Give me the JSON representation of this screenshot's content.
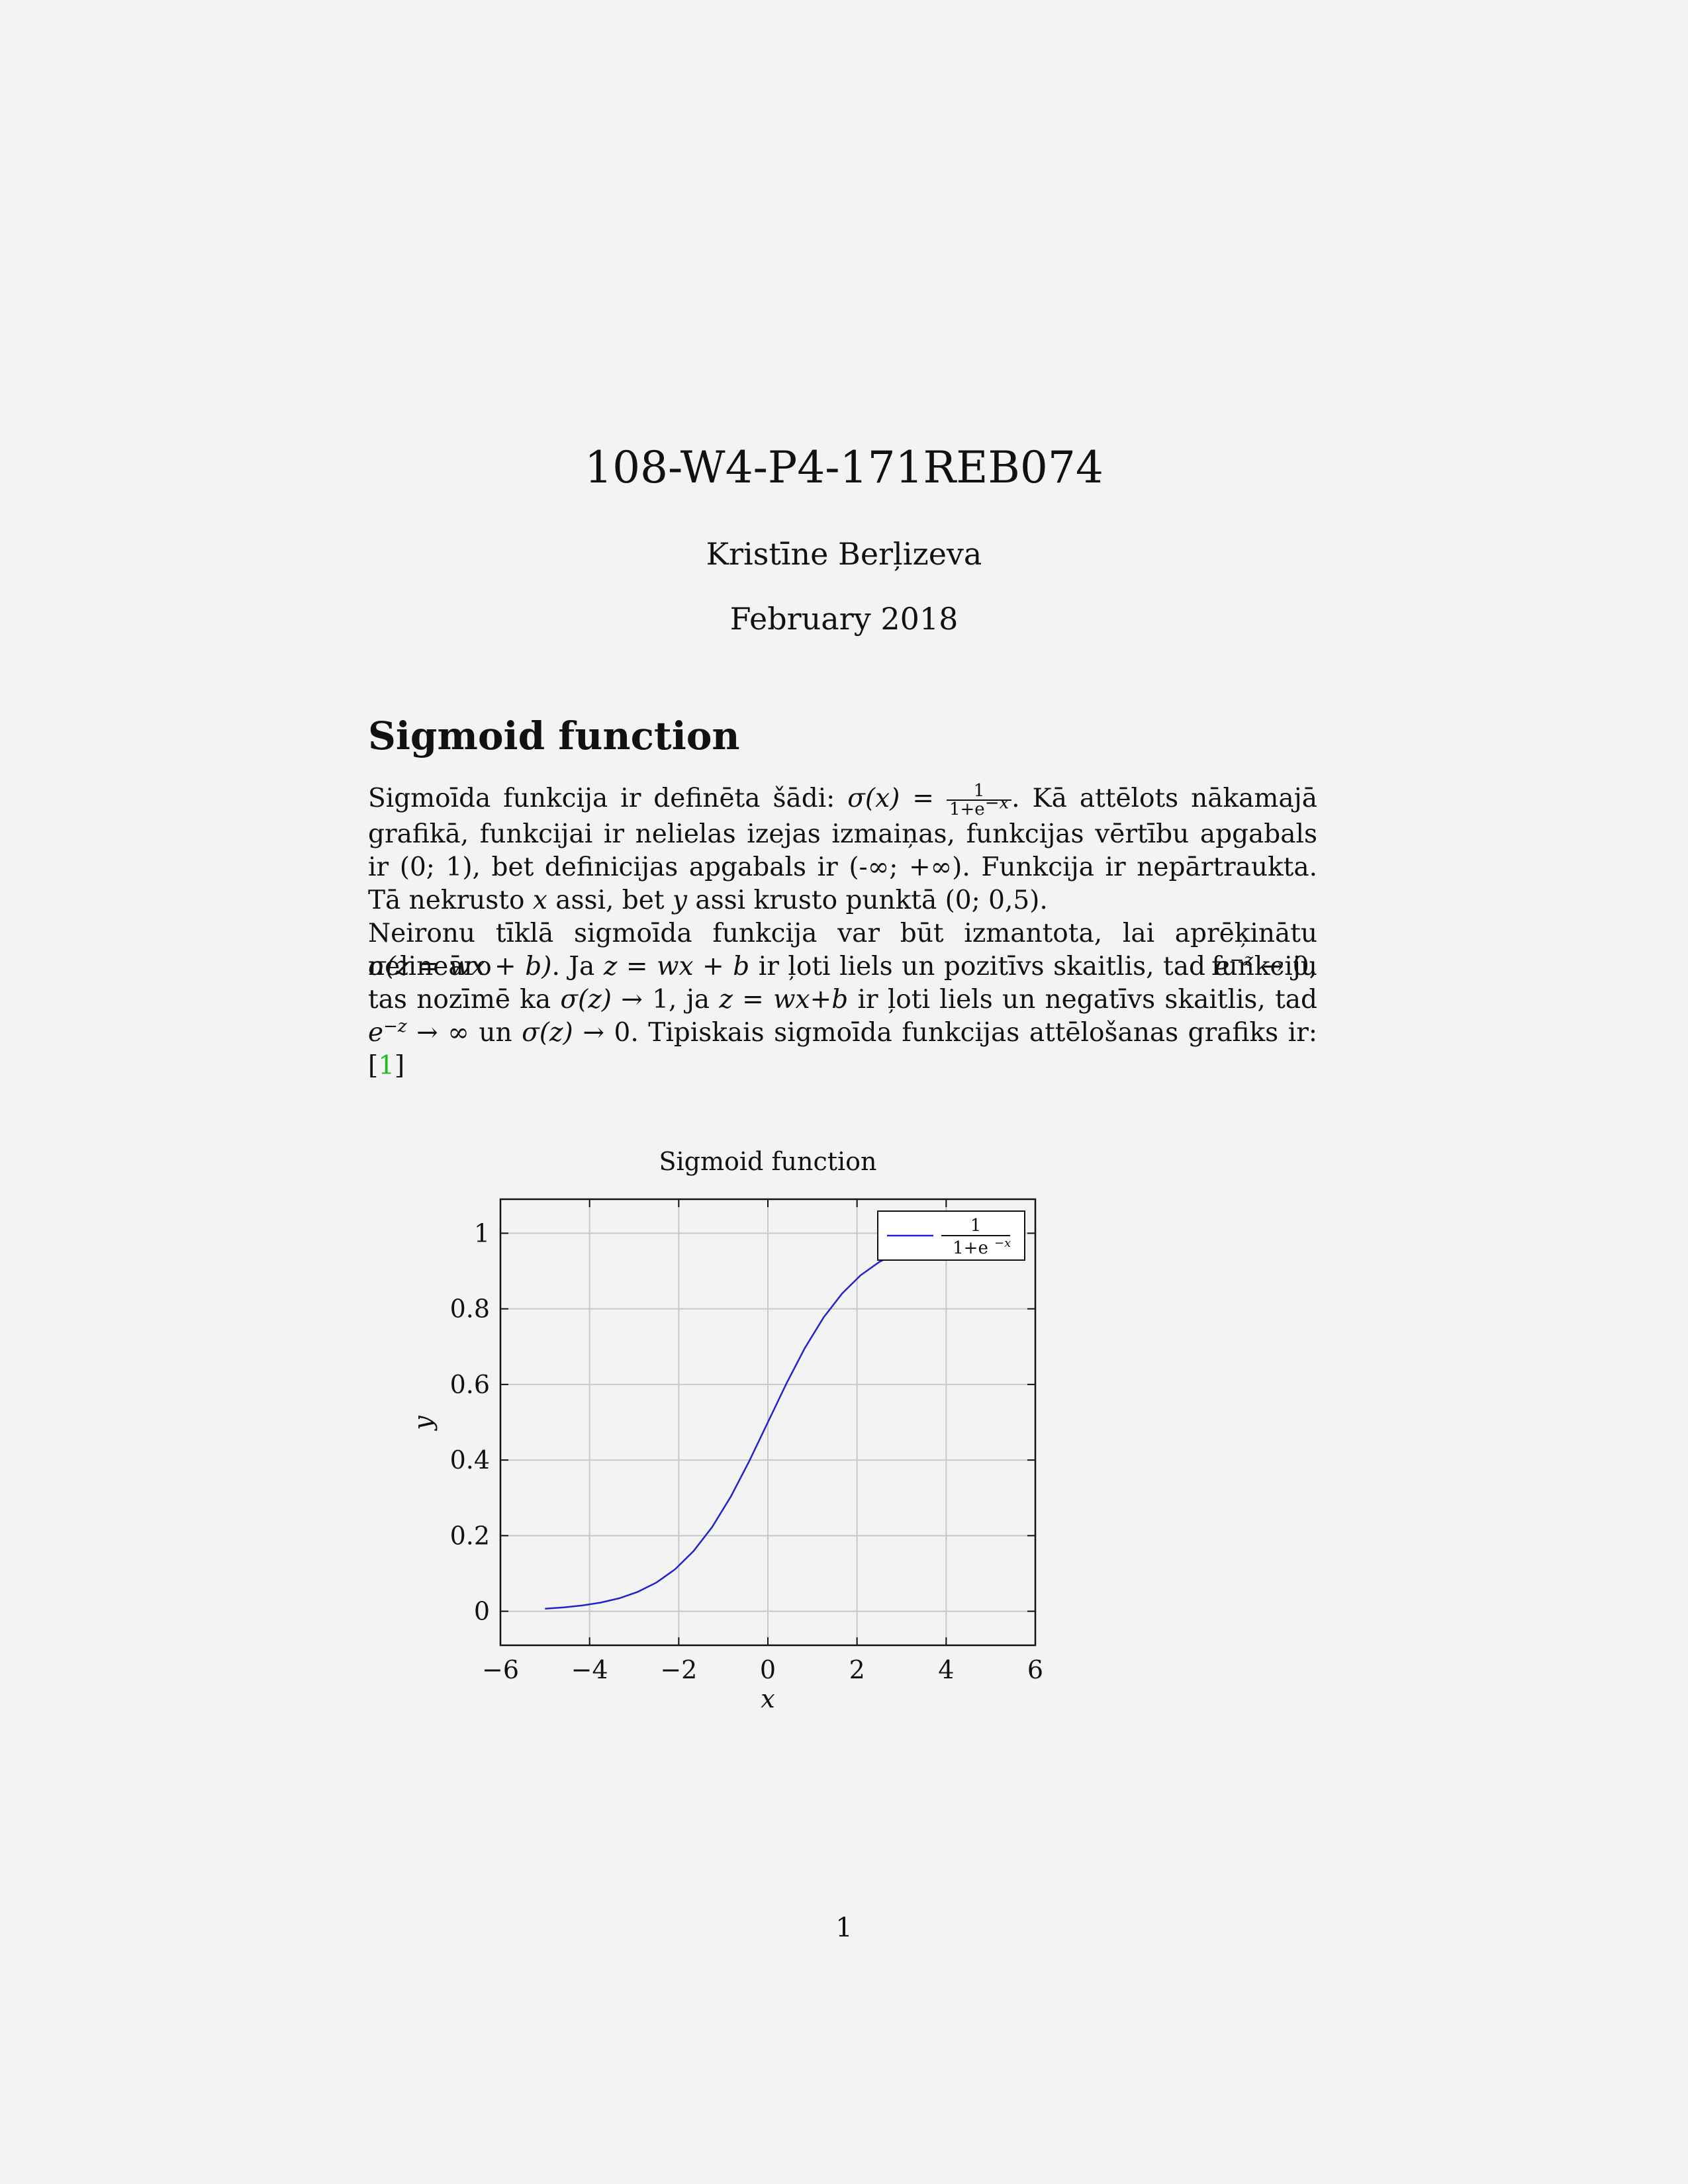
{
  "document": {
    "title": "108-W4-P4-171REB074",
    "author": "Kristīne Berļizeva",
    "date": "February 2018",
    "section_title": "Sigmoid function",
    "page_number": "1"
  },
  "text": {
    "p1_a": "Sigmoīda funkcija ir definēta šādi: ",
    "sigma_x": "σ(x) = ",
    "frac_num": "1",
    "frac_den": "1+e",
    "frac_exp": "−x",
    "p1_b": ". Kā attēlots nākamajā grafikā, funkcijai ir nelielas izejas izmaiņas, funkcijas vērtību apgabals ir (0; 1), bet definicijas apgabals ir (-∞; +∞). Funkcija ir nepārtraukta. Tā nekrusto ",
    "var_x": "x",
    "p1_c": " assi, bet ",
    "var_y": "y",
    "p1_d": " assi krusto punktā (0; 0,5).",
    "p2_a": "Neironu tīklā sigmoīda funkcija var būt izmantota, lai aprēķinātu nelineāro funkciju",
    "p3_a": "σ(z = wx + b)",
    "p3_b": ". Ja ",
    "p3_c": "z = wx + b",
    "p3_d": " ir ļoti liels un pozitīvs skaitlis, tad ",
    "e_base": "e",
    "e_exp": "−z",
    "p3_e": " → 0, tas nozīmē ka ",
    "p3_f": "σ(z)",
    "p3_g": " → 1, ja ",
    "p3_h": "z = wx+b",
    "p3_i": " ir ļoti liels un negatīvs skaitlis, tad ",
    "p3_j": " → ∞ un ",
    "p3_k": " → 0. Tipiskais sigmoīda funkcijas attēlošanas grafiks ir: [",
    "cite_num": "1",
    "p3_l": "]"
  },
  "chart_data": {
    "type": "line",
    "title": "Sigmoid function",
    "xlabel": "x",
    "ylabel": "y",
    "xlim": [
      -6,
      6
    ],
    "ylim": [
      -0.09,
      1.09
    ],
    "xticks": [
      -6,
      -4,
      -2,
      0,
      2,
      4,
      6
    ],
    "xtick_labels": [
      "−6",
      "−4",
      "−2",
      "0",
      "2",
      "4",
      "6"
    ],
    "yticks": [
      0,
      0.2,
      0.4,
      0.6,
      0.8,
      1
    ],
    "ytick_labels": [
      "0",
      "0.2",
      "0.4",
      "0.6",
      "0.8",
      "1"
    ],
    "grid": true,
    "legend_position": "top-right",
    "series": [
      {
        "name": "1/(1+e^−x)",
        "legend_num": "1",
        "legend_den": "1+e",
        "legend_exp": "−x",
        "color": "#2222cc",
        "x": [
          -5,
          -4.58,
          -4.17,
          -3.75,
          -3.33,
          -2.92,
          -2.5,
          -2.08,
          -1.67,
          -1.25,
          -0.83,
          -0.42,
          0,
          0.42,
          0.83,
          1.25,
          1.67,
          2.08,
          2.5,
          2.92,
          3.33,
          3.75,
          4.17,
          4.58,
          5
        ],
        "y": [
          0.0067,
          0.0101,
          0.0152,
          0.023,
          0.0345,
          0.0513,
          0.0759,
          0.1111,
          0.1589,
          0.2227,
          0.3035,
          0.3966,
          0.5,
          0.6034,
          0.6965,
          0.7773,
          0.8411,
          0.8889,
          0.9241,
          0.9487,
          0.9655,
          0.977,
          0.9848,
          0.9899,
          0.9933
        ]
      }
    ]
  }
}
